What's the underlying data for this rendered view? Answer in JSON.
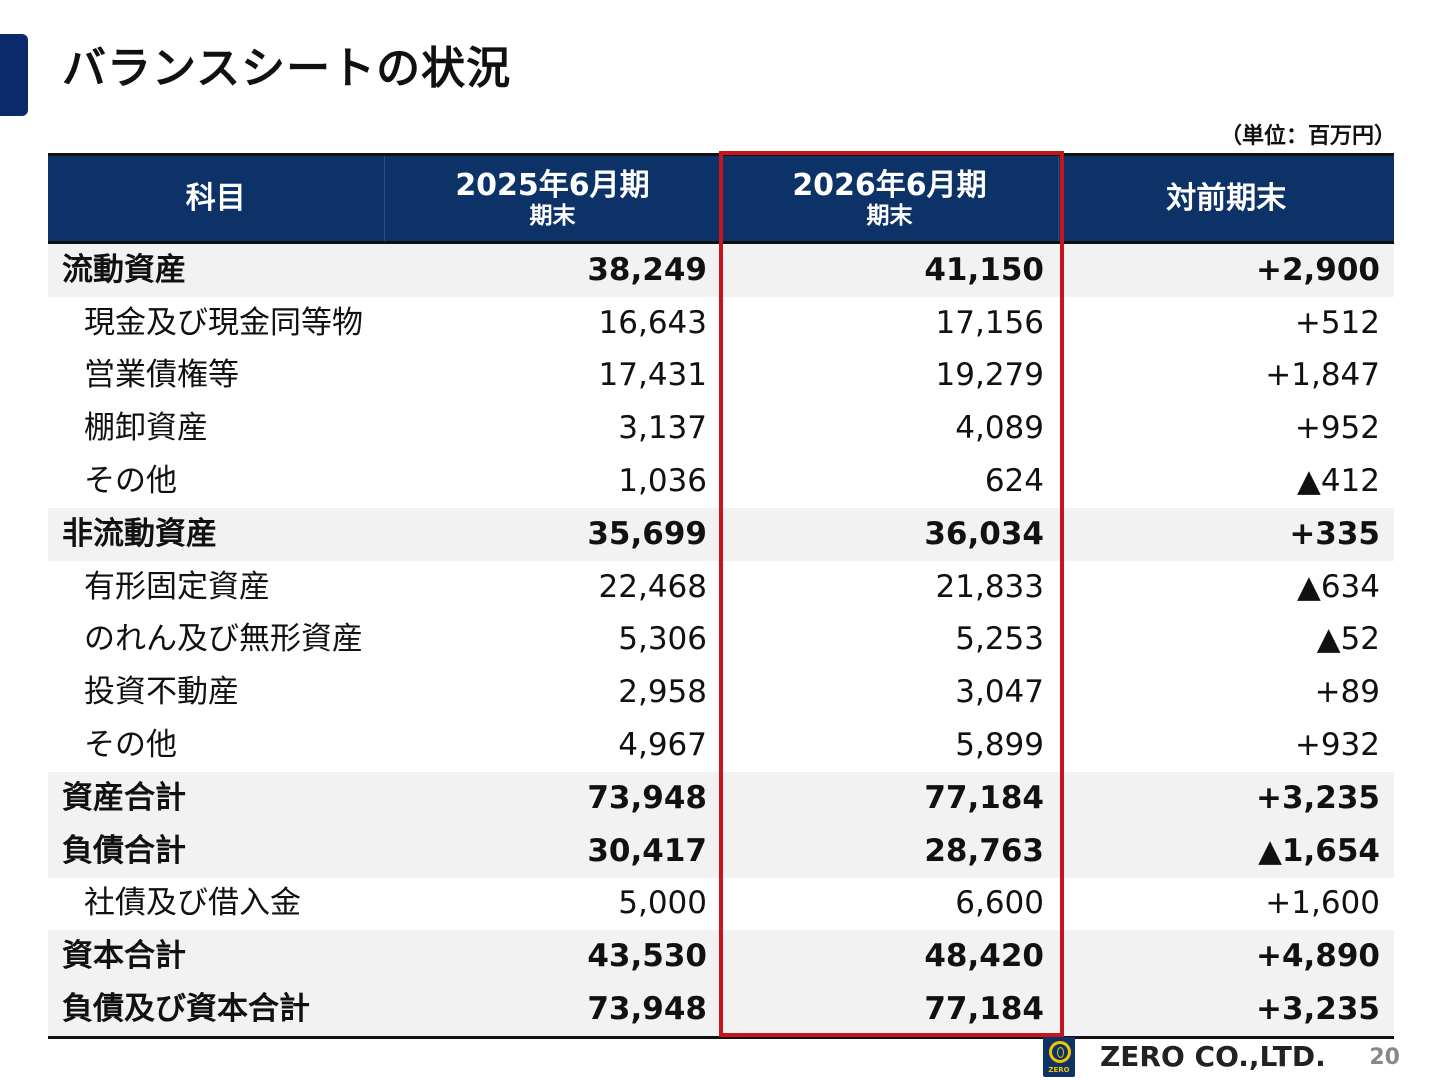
{
  "title": "バランスシートの状況",
  "unit_note": "（単位：百万円）",
  "colors": {
    "header_bg": "#0d3268",
    "header_text": "#ffffff",
    "bold_row_bg": "#f2f2f2",
    "highlight_border": "#c4161c",
    "accent_tab": "#0b2a6b"
  },
  "table": {
    "headers": [
      {
        "main": "科目",
        "sub": ""
      },
      {
        "main": "2025年6月期",
        "sub": "期末"
      },
      {
        "main": "2026年6月期",
        "sub": "期末"
      },
      {
        "main": "対前期末",
        "sub": ""
      }
    ],
    "highlighted_column": "2026年6月期 期末",
    "rows": [
      {
        "label": "流動資産",
        "prev": "38,249",
        "curr": "41,150",
        "diff": "+2,900",
        "bold": true
      },
      {
        "label": "現金及び現金同等物",
        "prev": "16,643",
        "curr": "17,156",
        "diff": "+512",
        "bold": false
      },
      {
        "label": "営業債権等",
        "prev": "17,431",
        "curr": "19,279",
        "diff": "+1,847",
        "bold": false
      },
      {
        "label": "棚卸資産",
        "prev": "3,137",
        "curr": "4,089",
        "diff": "+952",
        "bold": false
      },
      {
        "label": "その他",
        "prev": "1,036",
        "curr": "624",
        "diff": "▲412",
        "bold": false
      },
      {
        "label": "非流動資産",
        "prev": "35,699",
        "curr": "36,034",
        "diff": "+335",
        "bold": true
      },
      {
        "label": "有形固定資産",
        "prev": "22,468",
        "curr": "21,833",
        "diff": "▲634",
        "bold": false
      },
      {
        "label": "のれん及び無形資産",
        "prev": "5,306",
        "curr": "5,253",
        "diff": "▲52",
        "bold": false
      },
      {
        "label": "投資不動産",
        "prev": "2,958",
        "curr": "3,047",
        "diff": "+89",
        "bold": false
      },
      {
        "label": "その他",
        "prev": "4,967",
        "curr": "5,899",
        "diff": "+932",
        "bold": false
      },
      {
        "label": "資産合計",
        "prev": "73,948",
        "curr": "77,184",
        "diff": "+3,235",
        "bold": true
      },
      {
        "label": "負債合計",
        "prev": "30,417",
        "curr": "28,763",
        "diff": "▲1,654",
        "bold": true
      },
      {
        "label": "社債及び借入金",
        "prev": "5,000",
        "curr": "6,600",
        "diff": "+1,600",
        "bold": false
      },
      {
        "label": "資本合計",
        "prev": "43,530",
        "curr": "48,420",
        "diff": "+4,890",
        "bold": true
      },
      {
        "label": "負債及び資本合計",
        "prev": "73,948",
        "curr": "77,184",
        "diff": "+3,235",
        "bold": true
      }
    ]
  },
  "footer": {
    "logo_icon": "zero-logo-icon",
    "logo_mark_text": "ZERO",
    "company": "ZERO CO.,LTD.",
    "page_number": "20"
  }
}
